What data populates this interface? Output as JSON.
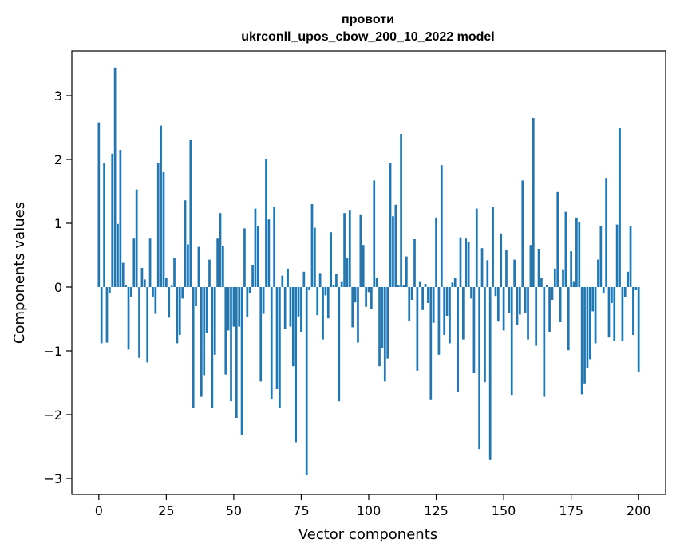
{
  "chart_data": {
    "type": "bar",
    "title": "провоти",
    "subtitle": "ukrconll_upos_cbow_200_10_2022 model",
    "xlabel": "Vector components",
    "ylabel": "Components values",
    "xlim": [
      -10,
      210
    ],
    "ylim": [
      -3.25,
      3.7
    ],
    "x_ticks": [
      0,
      25,
      50,
      75,
      100,
      125,
      150,
      175,
      200
    ],
    "x_tick_labels": [
      "0",
      "25",
      "50",
      "75",
      "100",
      "125",
      "150",
      "175",
      "200"
    ],
    "y_ticks": [
      -3,
      -2,
      -1,
      0,
      1,
      2,
      3
    ],
    "y_tick_labels": [
      "−3",
      "−2",
      "−1",
      "0",
      "1",
      "2",
      "3"
    ],
    "bar_color": "#1f77b4",
    "grid": false,
    "values": [
      2.58,
      -0.88,
      1.95,
      -0.87,
      -0.1,
      2.09,
      3.44,
      0.99,
      2.15,
      0.38,
      0.03,
      -0.98,
      -0.16,
      0.76,
      1.53,
      -1.11,
      0.3,
      0.12,
      -1.18,
      0.76,
      -0.15,
      -0.42,
      1.94,
      2.53,
      1.8,
      0.15,
      -0.48,
      0.02,
      0.45,
      -0.88,
      -0.75,
      -0.18,
      1.36,
      0.67,
      2.31,
      -1.9,
      -0.3,
      0.63,
      -1.72,
      -1.38,
      -0.72,
      0.43,
      -1.9,
      -1.06,
      0.76,
      1.16,
      0.65,
      -1.37,
      -0.68,
      -1.79,
      -0.62,
      -2.05,
      -0.62,
      -2.32,
      0.92,
      -0.47,
      -0.09,
      0.35,
      1.23,
      0.95,
      -1.48,
      -0.42,
      2.0,
      1.06,
      -1.75,
      1.25,
      -1.6,
      -1.9,
      0.18,
      -0.66,
      0.29,
      -0.62,
      -1.24,
      -2.43,
      -0.46,
      -0.7,
      0.24,
      -2.95,
      -0.05,
      1.3,
      0.93,
      -0.44,
      0.22,
      -0.82,
      -0.13,
      -0.49,
      0.86,
      0.03,
      0.2,
      -1.79,
      0.08,
      1.16,
      0.46,
      1.21,
      -0.63,
      -0.24,
      -0.87,
      1.14,
      0.66,
      -0.31,
      -0.08,
      -0.35,
      1.67,
      0.14,
      -1.24,
      -0.96,
      -1.48,
      -1.12,
      1.95,
      1.11,
      1.29,
      0.03,
      2.4,
      0.03,
      0.48,
      -0.53,
      -0.2,
      0.75,
      -1.31,
      0.08,
      -0.36,
      0.05,
      -0.25,
      -1.76,
      -0.56,
      1.09,
      -1.06,
      1.91,
      -0.75,
      -0.45,
      -0.88,
      0.07,
      0.15,
      -1.65,
      0.78,
      -0.82,
      0.76,
      0.7,
      -0.18,
      -1.35,
      1.23,
      -2.54,
      0.61,
      -1.49,
      0.42,
      -2.71,
      1.25,
      -0.14,
      -0.54,
      0.84,
      -0.68,
      0.58,
      -0.41,
      -1.69,
      0.43,
      -0.6,
      -0.43,
      1.67,
      -0.4,
      -0.82,
      0.66,
      2.65,
      -0.92,
      0.6,
      0.14,
      -1.72,
      0.03,
      -0.7,
      -0.2,
      0.29,
      1.49,
      -0.55,
      0.28,
      1.18,
      -0.99,
      0.56,
      0.08,
      1.09,
      1.02,
      -1.68,
      -1.51,
      -1.27,
      -1.13,
      -0.38,
      -0.88,
      0.43,
      0.96,
      -0.09,
      1.71,
      -0.79,
      -0.25,
      -0.85,
      0.98,
      2.49,
      -0.84,
      -0.16,
      0.24,
      0.96,
      -0.75,
      -0.05,
      -1.33
    ]
  }
}
